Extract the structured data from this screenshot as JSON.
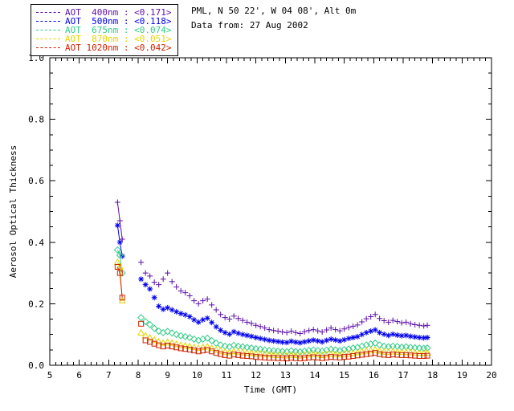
{
  "header": {
    "line1": "PML, N 50 22', W 04 08', Alt 0m",
    "line2": "Data from: 27 Aug 2002"
  },
  "chart_data": {
    "type": "scatter",
    "title": "",
    "xlabel": "Time (GMT)",
    "ylabel": "Aerosol Optical Thickness",
    "xlim": [
      5,
      20
    ],
    "ylim": [
      0.0,
      1.0
    ],
    "xticks": [
      5,
      6,
      7,
      8,
      9,
      10,
      11,
      12,
      13,
      14,
      15,
      16,
      17,
      18,
      19,
      20
    ],
    "yticks": [
      0.0,
      0.2,
      0.4,
      0.6,
      0.8,
      1.0
    ],
    "grid": false,
    "legend_position": "top-left",
    "x": [
      7.3,
      7.38,
      7.46,
      8.1,
      8.25,
      8.4,
      8.55,
      8.7,
      8.85,
      9.0,
      9.15,
      9.3,
      9.45,
      9.6,
      9.75,
      9.9,
      10.05,
      10.2,
      10.35,
      10.5,
      10.65,
      10.8,
      10.95,
      11.1,
      11.25,
      11.4,
      11.55,
      11.7,
      11.85,
      12.0,
      12.15,
      12.3,
      12.45,
      12.6,
      12.75,
      12.9,
      13.05,
      13.2,
      13.35,
      13.5,
      13.65,
      13.8,
      13.95,
      14.1,
      14.25,
      14.4,
      14.55,
      14.7,
      14.85,
      15.0,
      15.15,
      15.3,
      15.45,
      15.6,
      15.75,
      15.9,
      16.05,
      16.2,
      16.35,
      16.5,
      16.65,
      16.8,
      16.95,
      17.1,
      17.25,
      17.4,
      17.55,
      17.7,
      17.82
    ],
    "series": [
      {
        "name": "aot-400nm",
        "label": "AOT  400nm : <0.171>",
        "mean": "<0.171>",
        "color": "#5c0fa8",
        "marker": "plus",
        "values": [
          0.53,
          0.47,
          0.41,
          0.335,
          0.3,
          0.29,
          0.27,
          0.262,
          0.28,
          0.3,
          0.272,
          0.255,
          0.242,
          0.236,
          0.226,
          0.21,
          0.2,
          0.21,
          0.215,
          0.196,
          0.18,
          0.165,
          0.155,
          0.15,
          0.16,
          0.152,
          0.146,
          0.14,
          0.136,
          0.13,
          0.126,
          0.121,
          0.116,
          0.113,
          0.111,
          0.108,
          0.106,
          0.111,
          0.106,
          0.103,
          0.109,
          0.113,
          0.116,
          0.112,
          0.108,
          0.115,
          0.121,
          0.116,
          0.112,
          0.118,
          0.123,
          0.127,
          0.131,
          0.141,
          0.151,
          0.158,
          0.165,
          0.152,
          0.145,
          0.14,
          0.146,
          0.142,
          0.138,
          0.14,
          0.135,
          0.132,
          0.13,
          0.128,
          0.13
        ]
      },
      {
        "name": "aot-500nm",
        "label": "AOT  500nm : <0.118>",
        "mean": "<0.118>",
        "color": "#0000ee",
        "marker": "asterisk",
        "values": [
          0.455,
          0.4,
          0.355,
          0.28,
          0.262,
          0.248,
          0.22,
          0.192,
          0.182,
          0.187,
          0.18,
          0.174,
          0.168,
          0.164,
          0.158,
          0.148,
          0.14,
          0.148,
          0.153,
          0.139,
          0.125,
          0.114,
          0.106,
          0.101,
          0.109,
          0.104,
          0.1,
          0.097,
          0.094,
          0.09,
          0.087,
          0.084,
          0.081,
          0.079,
          0.077,
          0.075,
          0.074,
          0.078,
          0.075,
          0.073,
          0.076,
          0.079,
          0.082,
          0.079,
          0.076,
          0.081,
          0.085,
          0.082,
          0.079,
          0.083,
          0.087,
          0.09,
          0.093,
          0.1,
          0.106,
          0.111,
          0.115,
          0.106,
          0.101,
          0.097,
          0.101,
          0.098,
          0.096,
          0.097,
          0.094,
          0.092,
          0.09,
          0.089,
          0.09
        ]
      },
      {
        "name": "aot-675nm",
        "label": "AOT  675nm : <0.074>",
        "mean": "<0.074>",
        "color": "#33cc88",
        "marker": "diamond",
        "values": [
          0.375,
          0.358,
          0.3,
          0.155,
          0.142,
          0.132,
          0.12,
          0.111,
          0.106,
          0.11,
          0.105,
          0.1,
          0.096,
          0.093,
          0.09,
          0.085,
          0.081,
          0.085,
          0.088,
          0.08,
          0.072,
          0.066,
          0.062,
          0.06,
          0.065,
          0.062,
          0.06,
          0.058,
          0.056,
          0.054,
          0.052,
          0.05,
          0.048,
          0.047,
          0.046,
          0.045,
          0.044,
          0.047,
          0.045,
          0.044,
          0.046,
          0.048,
          0.05,
          0.048,
          0.046,
          0.049,
          0.052,
          0.05,
          0.048,
          0.051,
          0.053,
          0.056,
          0.058,
          0.062,
          0.066,
          0.069,
          0.072,
          0.066,
          0.062,
          0.06,
          0.062,
          0.061,
          0.059,
          0.06,
          0.058,
          0.057,
          0.056,
          0.055,
          0.056
        ]
      },
      {
        "name": "aot-870nm",
        "label": "AOT  870nm : <0.051>",
        "mean": "<0.051>",
        "color": "#e4d400",
        "marker": "triangle",
        "values": [
          0.335,
          0.32,
          0.21,
          0.105,
          0.096,
          0.089,
          0.082,
          0.076,
          0.072,
          0.075,
          0.072,
          0.068,
          0.065,
          0.063,
          0.061,
          0.058,
          0.055,
          0.058,
          0.06,
          0.055,
          0.05,
          0.046,
          0.043,
          0.041,
          0.045,
          0.043,
          0.041,
          0.04,
          0.039,
          0.037,
          0.036,
          0.035,
          0.034,
          0.033,
          0.032,
          0.032,
          0.031,
          0.033,
          0.032,
          0.031,
          0.032,
          0.034,
          0.035,
          0.034,
          0.032,
          0.034,
          0.036,
          0.035,
          0.034,
          0.036,
          0.037,
          0.039,
          0.041,
          0.044,
          0.046,
          0.048,
          0.05,
          0.046,
          0.043,
          0.042,
          0.044,
          0.043,
          0.042,
          0.042,
          0.041,
          0.04,
          0.039,
          0.039,
          0.04
        ]
      },
      {
        "name": "aot-1020nm",
        "label": "AOT 1020nm : <0.042>",
        "mean": "<0.042>",
        "color": "#cc2200",
        "marker": "square",
        "values": [
          0.32,
          0.3,
          0.22,
          0.135,
          0.081,
          0.076,
          0.07,
          0.065,
          0.061,
          0.064,
          0.061,
          0.058,
          0.055,
          0.053,
          0.051,
          0.048,
          0.045,
          0.048,
          0.05,
          0.045,
          0.04,
          0.036,
          0.033,
          0.031,
          0.035,
          0.033,
          0.031,
          0.03,
          0.029,
          0.027,
          0.026,
          0.025,
          0.024,
          0.024,
          0.023,
          0.023,
          0.022,
          0.024,
          0.023,
          0.022,
          0.023,
          0.025,
          0.026,
          0.025,
          0.023,
          0.025,
          0.027,
          0.026,
          0.025,
          0.027,
          0.028,
          0.03,
          0.032,
          0.034,
          0.036,
          0.038,
          0.04,
          0.036,
          0.034,
          0.033,
          0.035,
          0.034,
          0.033,
          0.033,
          0.032,
          0.031,
          0.03,
          0.03,
          0.031
        ]
      }
    ]
  }
}
